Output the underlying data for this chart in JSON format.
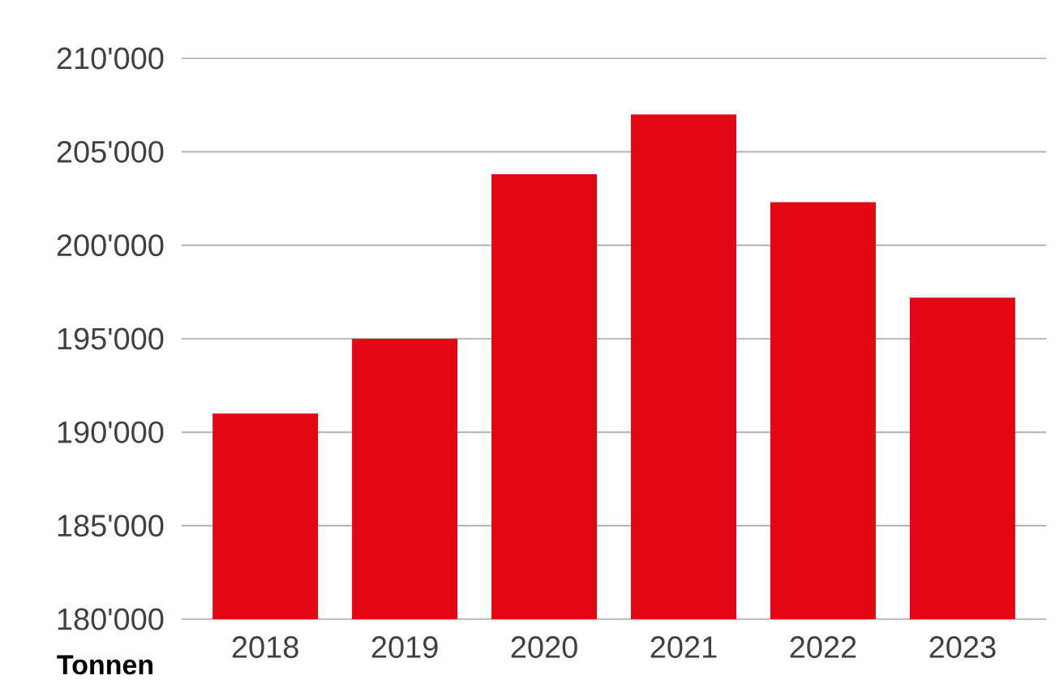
{
  "chart_data": {
    "type": "bar",
    "ylabel": "Tonnen",
    "categories": [
      "2018",
      "2019",
      "2020",
      "2021",
      "2022",
      "2023"
    ],
    "values": [
      191000,
      195000,
      203800,
      207000,
      202300,
      197200
    ],
    "color": "#e30613",
    "ylim": [
      180000,
      210000
    ],
    "yticks": [
      {
        "value": 180000,
        "label": "180'000"
      },
      {
        "value": 185000,
        "label": "185'000"
      },
      {
        "value": 190000,
        "label": "190'000"
      },
      {
        "value": 195000,
        "label": "195'000"
      },
      {
        "value": 200000,
        "label": "200'000"
      },
      {
        "value": 205000,
        "label": "205'000"
      },
      {
        "value": 210000,
        "label": "210'000"
      }
    ],
    "grid": "y"
  }
}
